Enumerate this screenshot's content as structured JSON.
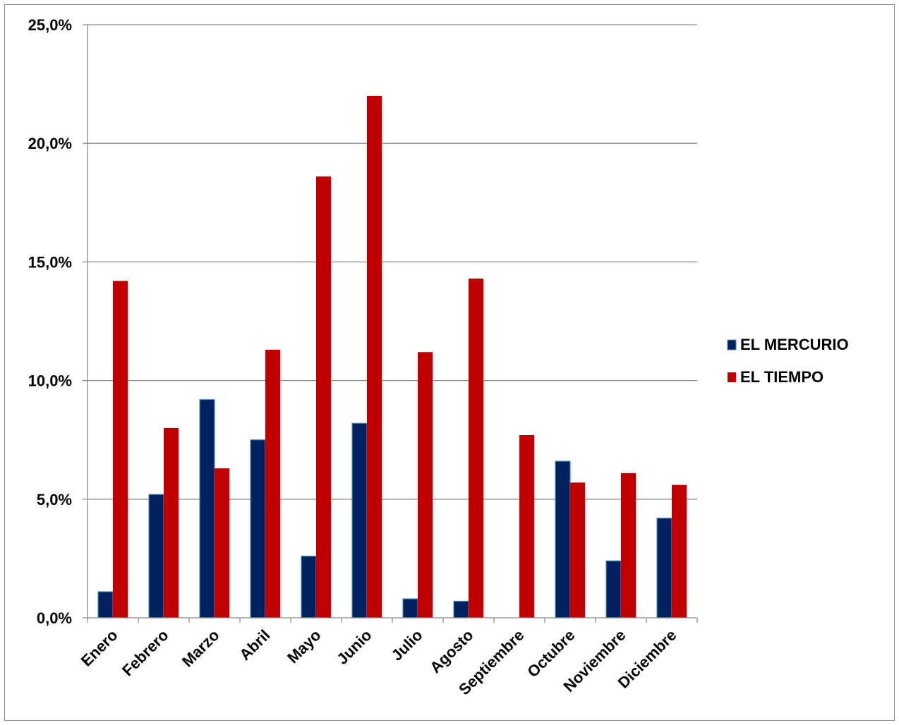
{
  "chart_data": {
    "type": "bar",
    "categories": [
      "Enero",
      "Febrero",
      "Marzo",
      "Abril",
      "Mayo",
      "Junio",
      "Julio",
      "Agosto",
      "Septiembre",
      "Octubre",
      "Noviembre",
      "Diciembre"
    ],
    "series": [
      {
        "name": "EL MERCURIO",
        "color": "#002060",
        "values": [
          1.1,
          5.2,
          9.2,
          7.5,
          2.6,
          8.2,
          0.8,
          0.7,
          0.0,
          6.6,
          2.4,
          4.2
        ]
      },
      {
        "name": "EL TIEMPO",
        "color": "#c00000",
        "values": [
          14.2,
          8.0,
          6.3,
          11.3,
          18.6,
          22.0,
          11.2,
          14.3,
          7.7,
          5.7,
          6.1,
          5.6
        ]
      }
    ],
    "y_ticks": [
      "0,0%",
      "5,0%",
      "10,0%",
      "15,0%",
      "20,0%",
      "25,0%"
    ],
    "ylim": [
      0,
      25
    ],
    "y_unit": "percent",
    "grid": true,
    "legend_position": "right"
  }
}
